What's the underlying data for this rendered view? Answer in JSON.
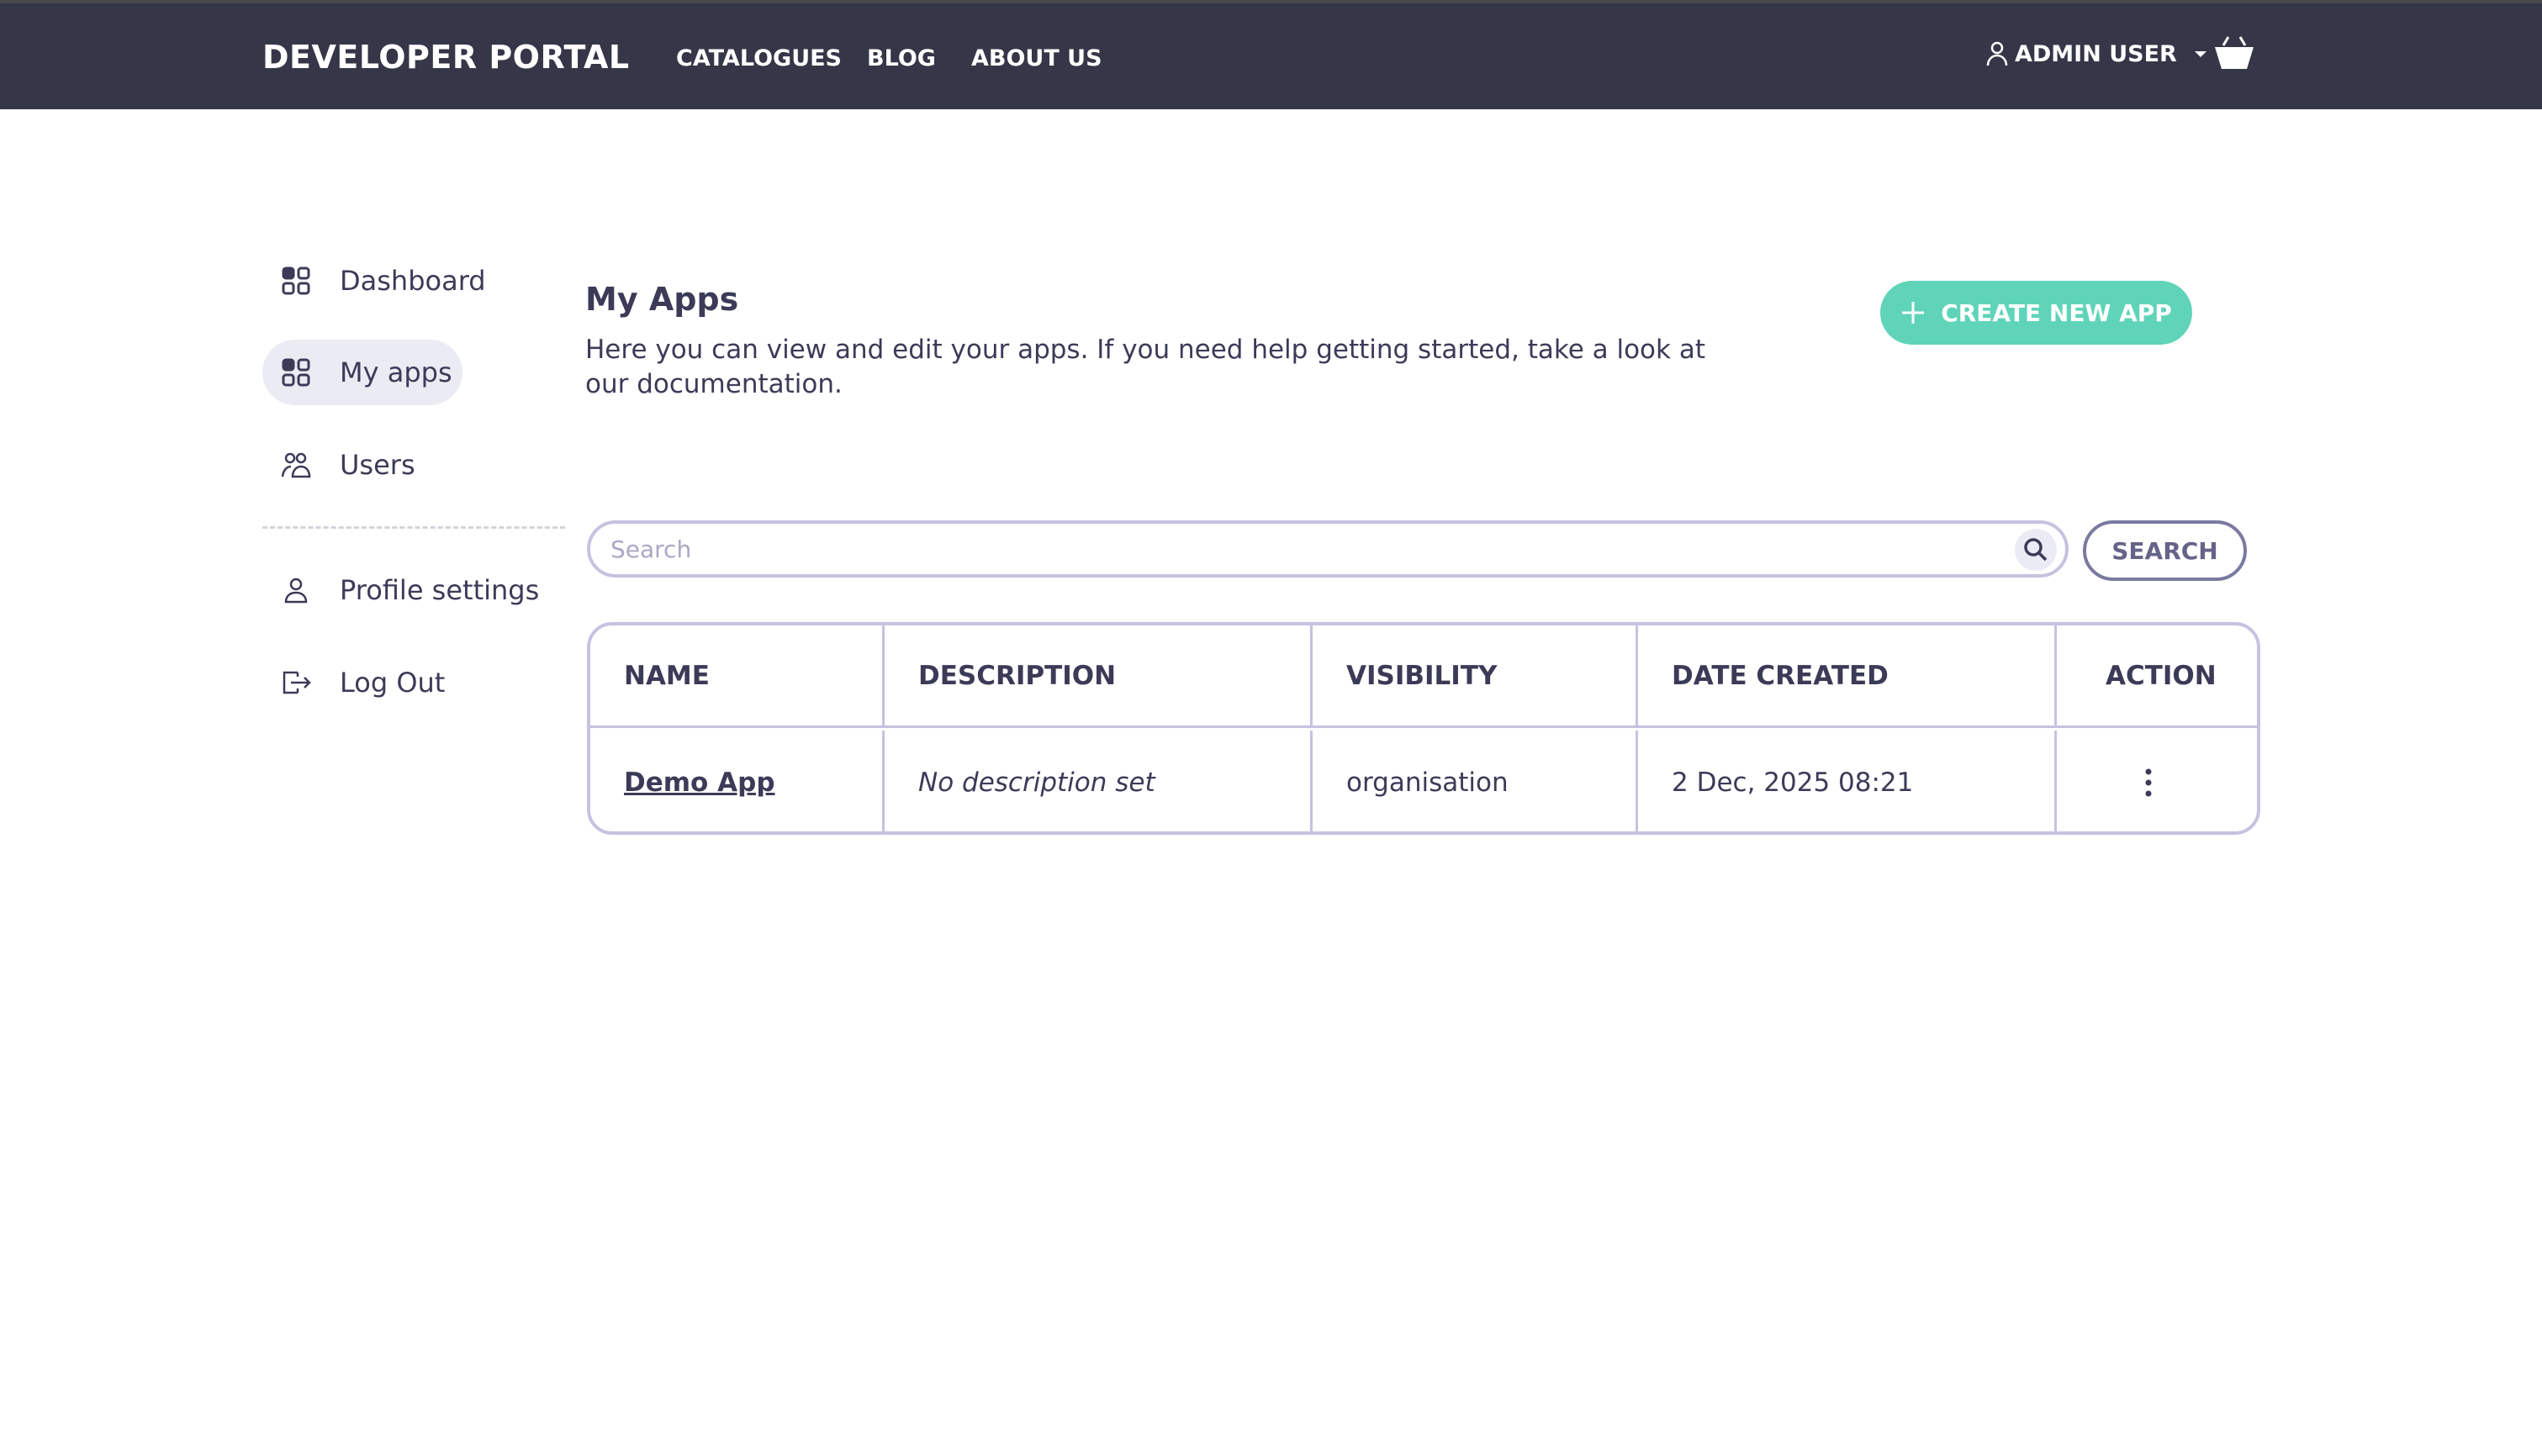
{
  "header": {
    "logo": "DEVELOPER PORTAL",
    "nav": [
      "CATALOGUES",
      "BLOG",
      "ABOUT US"
    ],
    "user": "ADMIN USER"
  },
  "sidebar": {
    "items": [
      {
        "label": "Dashboard",
        "icon": "dashboard-icon"
      },
      {
        "label": "My apps",
        "icon": "apps-icon",
        "active": true
      },
      {
        "label": "Users",
        "icon": "users-icon"
      },
      {
        "label": "Profile settings",
        "icon": "profile-icon"
      },
      {
        "label": "Log Out",
        "icon": "logout-icon"
      }
    ]
  },
  "main": {
    "title": "My Apps",
    "description": "Here you can view and edit your apps. If you need help getting started, take a look at our documentation.",
    "create_label": "CREATE NEW APP",
    "search_placeholder": "Search",
    "search_label": "SEARCH",
    "table": {
      "columns": [
        "NAME",
        "DESCRIPTION",
        "VISIBILITY",
        "DATE CREATED",
        "ACTION"
      ],
      "rows": [
        {
          "name": "Demo App",
          "description": "No description set",
          "visibility": "organisation",
          "date": "2 Dec, 2025 08:21"
        }
      ]
    }
  },
  "colors": {
    "nav_bg": "#363649",
    "accent": "#5fd4b9",
    "border": "#c5c3e0"
  }
}
